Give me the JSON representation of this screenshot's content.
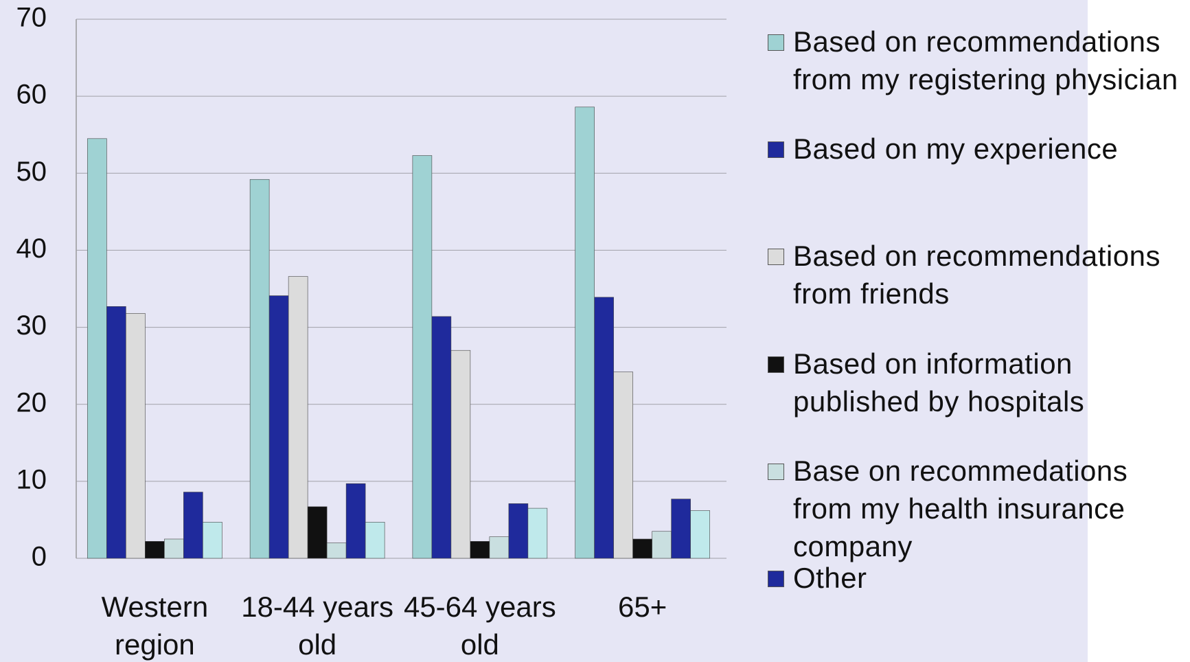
{
  "chart_data": {
    "type": "bar",
    "categories": [
      "Western region",
      "18-44 years old",
      "45-64 years old",
      "65+"
    ],
    "series": [
      {
        "name": "Based on recommendations from my registering physician",
        "color": "#9fd2d3",
        "values": [
          54.5,
          49.2,
          52.3,
          58.6
        ]
      },
      {
        "name": "Based on my experience",
        "color": "#1f2a9c",
        "values": [
          32.7,
          34.1,
          31.4,
          33.9
        ]
      },
      {
        "name": "Based on recommendations from friends",
        "color": "#dcdcdc",
        "values": [
          31.8,
          36.6,
          27.0,
          24.2
        ]
      },
      {
        "name": "Based on information published by hospitals",
        "color": "#111111",
        "values": [
          2.2,
          6.7,
          2.2,
          2.5
        ]
      },
      {
        "name": "Base on recommedations from my health insurance company",
        "color": "#c9dfe0",
        "values": [
          2.5,
          2.0,
          2.8,
          3.5
        ]
      },
      {
        "name": "Other",
        "color": "#1f2a9c",
        "values": [
          8.6,
          9.7,
          7.1,
          7.7
        ]
      },
      {
        "name": null,
        "color": "#bfe9eb",
        "values": [
          4.7,
          4.7,
          6.5,
          6.2
        ]
      }
    ],
    "ylim": [
      0,
      70
    ],
    "yticks": [
      0,
      10,
      20,
      30,
      40,
      50,
      60,
      70
    ],
    "grid": true
  }
}
